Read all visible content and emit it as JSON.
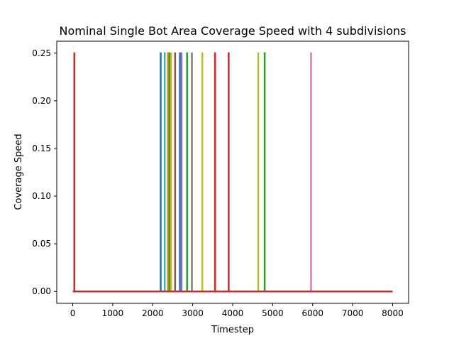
{
  "chart_data": {
    "type": "line",
    "title": "Nominal Single Bot Area Coverage Speed with 4 subdivisions",
    "xlabel": "Timestep",
    "ylabel": "Coverage Speed",
    "xlim": [
      -400,
      8400
    ],
    "ylim": [
      -0.0125,
      0.2625
    ],
    "xticks": [
      0,
      1000,
      2000,
      3000,
      4000,
      5000,
      6000,
      7000,
      8000
    ],
    "yticks": [
      0.0,
      0.05,
      0.1,
      0.15,
      0.2,
      0.25
    ],
    "xtick_labels": [
      "0",
      "1000",
      "2000",
      "3000",
      "4000",
      "5000",
      "6000",
      "7000",
      "8000"
    ],
    "ytick_labels": [
      "0.00",
      "0.05",
      "0.10",
      "0.15",
      "0.20",
      "0.25"
    ],
    "grid": false,
    "legend": "none",
    "baseline": {
      "y": 0.0,
      "x_range": [
        0,
        8000
      ],
      "color": "#d62728"
    },
    "series": [
      {
        "spike_x": 2200,
        "peak": 0.25,
        "color": "#1f77b4"
      },
      {
        "spike_x": 2300,
        "peak": 0.25,
        "color": "#17becf"
      },
      {
        "spike_x": 2380,
        "peak": 0.25,
        "color": "#ff7f0e"
      },
      {
        "spike_x": 2420,
        "peak": 0.25,
        "color": "#2ca02c"
      },
      {
        "spike_x": 2460,
        "peak": 0.25,
        "color": "#bcbd22"
      },
      {
        "spike_x": 2560,
        "peak": 0.25,
        "color": "#8c564b"
      },
      {
        "spike_x": 2680,
        "peak": 0.25,
        "color": "#1f77b4"
      },
      {
        "spike_x": 2720,
        "peak": 0.25,
        "color": "#9467bd"
      },
      {
        "spike_x": 2860,
        "peak": 0.25,
        "color": "#2ca02c"
      },
      {
        "spike_x": 2980,
        "peak": 0.25,
        "color": "#7f7f7f"
      },
      {
        "spike_x": 3240,
        "peak": 0.25,
        "color": "#bcbd22"
      },
      {
        "spike_x": 3560,
        "peak": 0.25,
        "color": "#d62728"
      },
      {
        "spike_x": 3900,
        "peak": 0.25,
        "color": "#d62728"
      },
      {
        "spike_x": 4640,
        "peak": 0.25,
        "color": "#bcbd22"
      },
      {
        "spike_x": 4800,
        "peak": 0.25,
        "color": "#2ca02c"
      },
      {
        "spike_x": 5960,
        "peak": 0.25,
        "color": "#e377c2"
      },
      {
        "spike_x": 40,
        "peak": 0.25,
        "color": "#d62728"
      }
    ]
  }
}
